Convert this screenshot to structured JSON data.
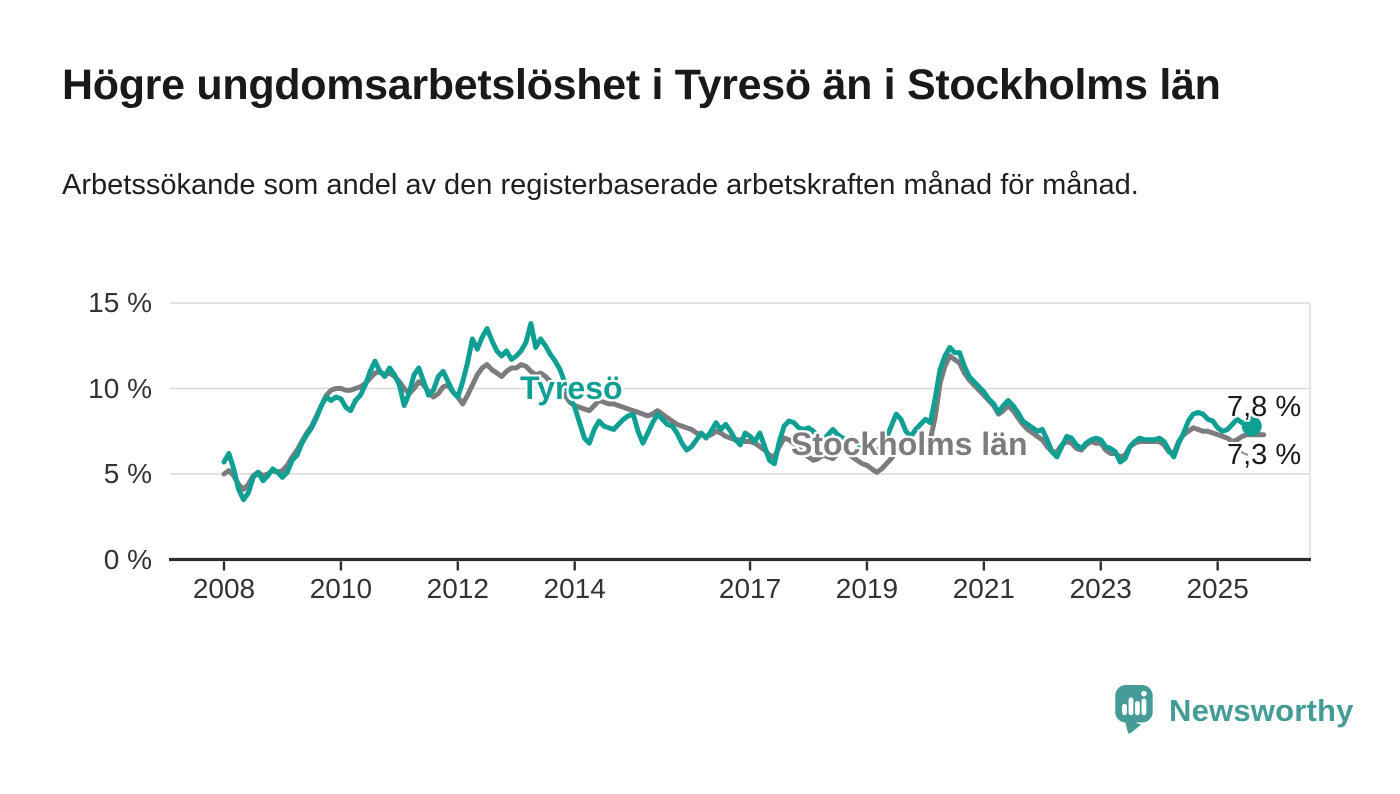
{
  "header": {
    "title": "Högre ungdomsarbetslöshet i Tyresö än i Stockholms län",
    "subtitle": "Arbetssökande som andel av den registerbaserade arbetskraften månad för månad."
  },
  "footer": {
    "brand": "Newsworthy"
  },
  "colors": {
    "tyreso": "#10a093",
    "stockholm": "#7c7c7e",
    "grid": "#d9d9d9",
    "axis": "#2e2e2e",
    "tick_text": "#333333",
    "label_text": "#1a1a1a",
    "leader": "#8f8f8f",
    "logo": "#459b95",
    "background": "#ffffff"
  },
  "chart_data": {
    "type": "line",
    "title": "Högre ungdomsarbetslöshet i Tyresö än i Stockholms län",
    "xlabel": "",
    "ylabel": "Arbetssökande som andel av den registerbaserade arbetskraften",
    "frequency": "monthly",
    "x_start": "2008-01",
    "x_end": "2025-08",
    "xlim": [
      2008,
      2026.1
    ],
    "ylim": [
      0,
      15
    ],
    "grid": true,
    "x_tick_years": [
      2008,
      2010,
      2012,
      2014,
      2017,
      2019,
      2021,
      2023,
      2025
    ],
    "x_tick_labels": [
      "2008",
      "2010",
      "2012",
      "2014",
      "2017",
      "2019",
      "2021",
      "2023",
      "2025"
    ],
    "y_tick_values": [
      15,
      10,
      5,
      0
    ],
    "y_tick_labels": [
      "15 %",
      "10 %",
      "5 %",
      "0 %"
    ],
    "legend_position": "inline-labels",
    "series": [
      {
        "name": "Tyresö",
        "color": "#10a093",
        "end_label": "7,8 %",
        "end_value": 7.8,
        "end_dot": true,
        "values": [
          5.7,
          6.2,
          5.3,
          4.1,
          3.5,
          3.9,
          4.8,
          5.1,
          4.6,
          4.9,
          5.3,
          5.1,
          4.8,
          5.1,
          5.8,
          6.1,
          6.8,
          7.3,
          7.7,
          8.3,
          9.0,
          9.5,
          9.3,
          9.5,
          9.4,
          8.9,
          8.7,
          9.3,
          9.6,
          10.2,
          11.0,
          11.6,
          11.0,
          10.7,
          11.2,
          10.8,
          10.2,
          9.0,
          9.7,
          10.8,
          11.2,
          10.4,
          9.6,
          9.9,
          10.7,
          11.0,
          10.4,
          9.8,
          9.5,
          10.4,
          11.5,
          12.9,
          12.3,
          13.0,
          13.5,
          12.8,
          12.2,
          11.9,
          12.2,
          11.7,
          11.9,
          12.2,
          12.7,
          13.8,
          12.4,
          12.9,
          12.5,
          12.0,
          11.6,
          11.1,
          10.3,
          9.5,
          8.9,
          8.0,
          7.1,
          6.8,
          7.6,
          8.1,
          7.8,
          7.7,
          7.6,
          7.9,
          8.2,
          8.4,
          8.5,
          7.5,
          6.8,
          7.4,
          8.0,
          8.5,
          8.2,
          7.9,
          7.8,
          7.4,
          6.8,
          6.4,
          6.6,
          7.0,
          7.4,
          7.1,
          7.5,
          8.0,
          7.6,
          7.9,
          7.5,
          7.0,
          6.7,
          7.4,
          7.2,
          6.9,
          7.4,
          6.6,
          5.8,
          5.6,
          6.9,
          7.8,
          8.1,
          8.0,
          7.7,
          7.6,
          7.7,
          7.5,
          7.2,
          7.0,
          7.3,
          7.6,
          7.3,
          7.1,
          6.9,
          7.1,
          6.8,
          6.6,
          6.8,
          6.5,
          6.3,
          6.6,
          7.1,
          7.8,
          8.5,
          8.2,
          7.5,
          7.2,
          7.6,
          7.9,
          8.2,
          8.0,
          9.4,
          11.1,
          11.9,
          12.4,
          12.1,
          12.1,
          11.3,
          10.7,
          10.4,
          10.1,
          9.8,
          9.4,
          9.1,
          8.6,
          9.0,
          9.3,
          9.0,
          8.6,
          8.1,
          7.9,
          7.7,
          7.5,
          7.6,
          7.0,
          6.3,
          6.0,
          6.6,
          7.2,
          7.1,
          6.7,
          6.5,
          6.8,
          7.0,
          7.1,
          7.0,
          6.6,
          6.5,
          6.3,
          5.7,
          5.9,
          6.6,
          6.9,
          7.1,
          7.0,
          7.0,
          7.0,
          7.1,
          6.9,
          6.4,
          6.0,
          6.8,
          7.4,
          8.1,
          8.5,
          8.6,
          8.5,
          8.2,
          8.1,
          7.7,
          7.5,
          7.6,
          7.9,
          8.2,
          8.0,
          7.9,
          7.8
        ]
      },
      {
        "name": "Stockholms län",
        "color": "#7c7c7e",
        "end_label": "7,3 %",
        "end_value": 7.3,
        "end_dot": false,
        "values": [
          5.0,
          5.2,
          4.9,
          4.4,
          4.1,
          4.4,
          4.9,
          5.1,
          4.9,
          5.0,
          5.2,
          5.1,
          5.2,
          5.5,
          6.0,
          6.4,
          6.9,
          7.4,
          7.8,
          8.4,
          9.0,
          9.6,
          9.9,
          10.0,
          10.0,
          9.9,
          9.9,
          10.0,
          10.1,
          10.3,
          10.6,
          10.9,
          11.0,
          10.8,
          10.9,
          10.7,
          10.4,
          10.0,
          9.7,
          10.0,
          10.4,
          10.2,
          9.8,
          9.5,
          9.7,
          10.1,
          10.2,
          9.8,
          9.5,
          9.1,
          9.6,
          10.2,
          10.8,
          11.2,
          11.4,
          11.1,
          10.9,
          10.7,
          11.0,
          11.2,
          11.2,
          11.4,
          11.3,
          11.0,
          10.8,
          10.9,
          10.7,
          10.4,
          10.2,
          9.9,
          9.6,
          9.2,
          9.0,
          8.9,
          8.8,
          8.7,
          9.0,
          9.3,
          9.2,
          9.1,
          9.1,
          9.0,
          8.9,
          8.8,
          8.7,
          8.6,
          8.5,
          8.4,
          8.5,
          8.7,
          8.5,
          8.3,
          8.1,
          7.9,
          7.8,
          7.7,
          7.6,
          7.4,
          7.3,
          7.2,
          7.3,
          7.5,
          7.4,
          7.2,
          7.1,
          7.0,
          7.0,
          6.9,
          6.9,
          6.8,
          6.6,
          6.4,
          6.1,
          6.0,
          6.6,
          7.1,
          7.0,
          6.8,
          6.5,
          6.2,
          6.0,
          5.8,
          5.9,
          6.1,
          6.0,
          5.9,
          6.2,
          6.4,
          6.2,
          6.0,
          5.8,
          5.6,
          5.5,
          5.3,
          5.1,
          5.3,
          5.6,
          5.9,
          6.3,
          6.5,
          6.3,
          6.2,
          6.4,
          6.7,
          6.9,
          7.0,
          8.3,
          10.3,
          11.3,
          11.9,
          11.7,
          11.5,
          10.9,
          10.5,
          10.2,
          9.9,
          9.6,
          9.3,
          9.0,
          8.5,
          8.7,
          9.0,
          8.7,
          8.3,
          7.9,
          7.6,
          7.4,
          7.2,
          7.0,
          6.6,
          6.3,
          6.3,
          6.7,
          6.9,
          6.8,
          6.5,
          6.4,
          6.7,
          6.9,
          6.8,
          6.8,
          6.4,
          6.2,
          6.2,
          6.0,
          6.1,
          6.6,
          6.8,
          6.9,
          6.9,
          6.9,
          6.9,
          6.9,
          6.7,
          6.3,
          6.2,
          6.9,
          7.3,
          7.5,
          7.7,
          7.6,
          7.5,
          7.5,
          7.4,
          7.3,
          7.2,
          7.1,
          6.9,
          7.0,
          7.2,
          7.3,
          7.3
        ]
      }
    ]
  }
}
